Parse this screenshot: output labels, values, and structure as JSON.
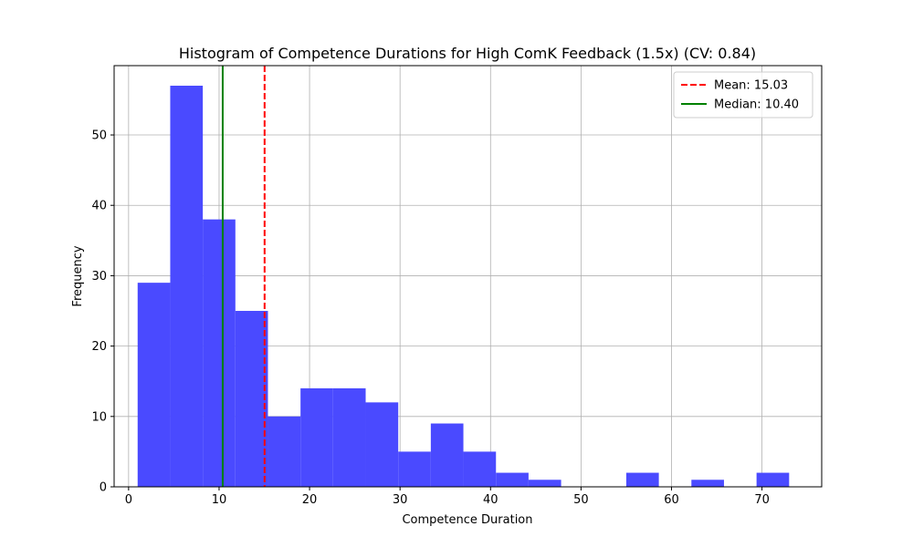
{
  "chart_data": {
    "type": "histogram",
    "title": "Histogram of Competence Durations for High ComK Feedback (1.5x) (CV: 0.84)",
    "xlabel": "Competence Duration",
    "ylabel": "Frequency",
    "xlim": [
      -1.6,
      76.6
    ],
    "ylim": [
      0,
      59.85
    ],
    "xticks": [
      0,
      10,
      20,
      30,
      40,
      50,
      60,
      70
    ],
    "yticks": [
      0,
      10,
      20,
      30,
      40,
      50
    ],
    "grid": true,
    "bar_color": "#4a4aff",
    "bins": [
      {
        "x0": 1.0,
        "x1": 4.6,
        "count": 29
      },
      {
        "x0": 4.6,
        "x1": 8.2,
        "count": 57
      },
      {
        "x0": 8.2,
        "x1": 11.8,
        "count": 38
      },
      {
        "x0": 11.8,
        "x1": 15.4,
        "count": 25
      },
      {
        "x0": 15.4,
        "x1": 19.0,
        "count": 10
      },
      {
        "x0": 19.0,
        "x1": 22.6,
        "count": 14
      },
      {
        "x0": 22.6,
        "x1": 26.2,
        "count": 14
      },
      {
        "x0": 26.2,
        "x1": 29.8,
        "count": 12
      },
      {
        "x0": 29.8,
        "x1": 33.4,
        "count": 5
      },
      {
        "x0": 33.4,
        "x1": 37.0,
        "count": 9
      },
      {
        "x0": 37.0,
        "x1": 40.6,
        "count": 5
      },
      {
        "x0": 40.6,
        "x1": 44.2,
        "count": 2
      },
      {
        "x0": 44.2,
        "x1": 47.8,
        "count": 1
      },
      {
        "x0": 47.8,
        "x1": 51.4,
        "count": 0
      },
      {
        "x0": 51.4,
        "x1": 55.0,
        "count": 0
      },
      {
        "x0": 55.0,
        "x1": 58.6,
        "count": 2
      },
      {
        "x0": 58.6,
        "x1": 62.2,
        "count": 0
      },
      {
        "x0": 62.2,
        "x1": 65.8,
        "count": 1
      },
      {
        "x0": 65.8,
        "x1": 69.4,
        "count": 0
      },
      {
        "x0": 69.4,
        "x1": 73.0,
        "count": 2
      }
    ],
    "reference_lines": [
      {
        "name": "Mean: 15.03",
        "x": 15.03,
        "color": "#ff0000",
        "style": "dashed"
      },
      {
        "name": "Median: 10.40",
        "x": 10.4,
        "color": "#008000",
        "style": "solid"
      }
    ],
    "legend": {
      "placement": "top-right"
    }
  }
}
